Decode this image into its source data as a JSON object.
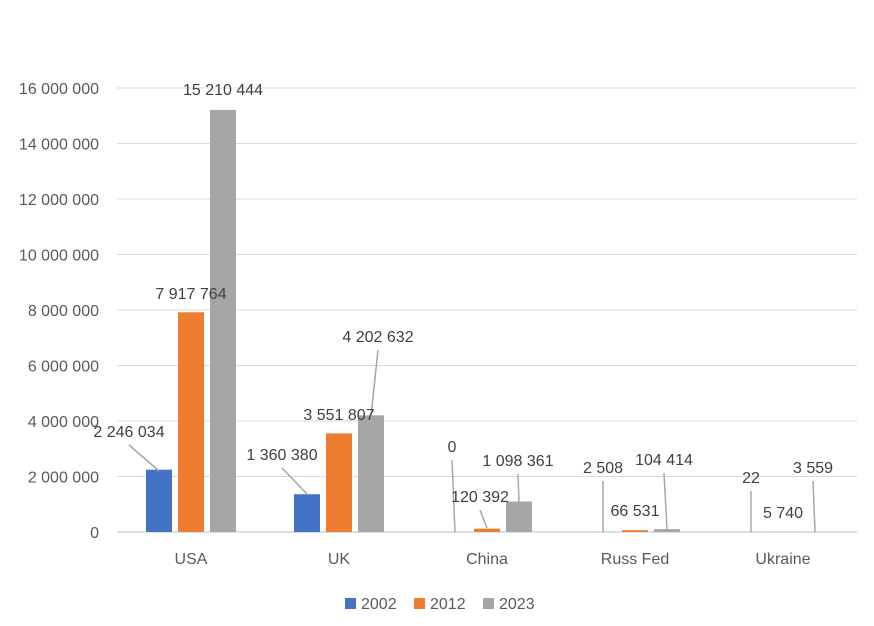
{
  "chart_data": {
    "type": "bar",
    "categories": [
      "USA",
      "UK",
      "China",
      "Russ Fed",
      "Ukraine"
    ],
    "series": [
      {
        "name": "2002",
        "color": "#4472C4",
        "values": [
          2246034,
          1360380,
          0,
          2508,
          22
        ],
        "labels": [
          "2 246 034",
          "1 360 380",
          "0",
          "2 508",
          "22"
        ]
      },
      {
        "name": "2012",
        "color": "#ED7D31",
        "values": [
          7917764,
          3551807,
          120392,
          66531,
          5740
        ],
        "labels": [
          "7 917 764",
          "3 551 807",
          "120 392",
          "66 531",
          "5 740"
        ]
      },
      {
        "name": "2023",
        "color": "#A5A5A5",
        "values": [
          15210444,
          4202632,
          1098361,
          104414,
          3559
        ],
        "labels": [
          "15 210 444",
          "4 202 632",
          "1 098 361",
          "104 414",
          "3 559"
        ]
      }
    ],
    "y_ticks": [
      0,
      2000000,
      4000000,
      6000000,
      8000000,
      10000000,
      12000000,
      14000000,
      16000000
    ],
    "y_tick_labels": [
      "0",
      "2 000 000",
      "4 000 000",
      "6 000 000",
      "8 000 000",
      "10 000 000",
      "12 000 000",
      "14 000 000",
      "16 000 000"
    ],
    "ylim": [
      0,
      16000000
    ],
    "grid": true,
    "legend_position": "bottom"
  }
}
